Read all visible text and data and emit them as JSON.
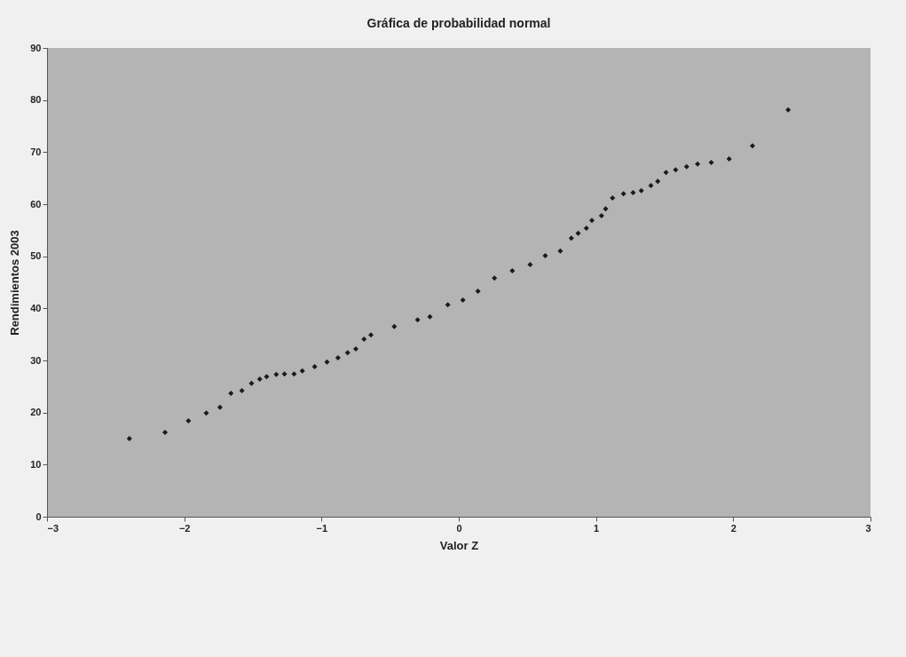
{
  "chart_data": {
    "type": "scatter",
    "title": "Gráfica de probabilidad normal",
    "xlabel": "Valor Z",
    "ylabel": "Rendimientos 2003",
    "marker": "diamond",
    "grid": false,
    "xlim": [
      -3,
      3
    ],
    "xticks": [
      -3,
      -2,
      -1,
      0,
      1,
      2,
      3
    ],
    "ylim": [
      0,
      90
    ],
    "yticks": [
      0,
      10,
      20,
      30,
      40,
      50,
      60,
      70,
      80,
      90
    ],
    "series": [
      {
        "color": "#1a1a1a",
        "x": [
          -2.4,
          -2.14,
          -1.97,
          -1.84,
          -1.74,
          -1.66,
          -1.58,
          -1.51,
          -1.45,
          -1.4,
          -1.33,
          -1.27,
          -1.2,
          -1.14,
          -1.05,
          -0.96,
          -0.88,
          -0.81,
          -0.75,
          -0.69,
          -0.64,
          -0.47,
          -0.3,
          -0.21,
          -0.08,
          0.03,
          0.14,
          0.26,
          0.39,
          0.52,
          0.63,
          0.74,
          0.82,
          0.87,
          0.93,
          0.97,
          1.04,
          1.07,
          1.12,
          1.2,
          1.27,
          1.33,
          1.4,
          1.45,
          1.51,
          1.58,
          1.66,
          1.74,
          1.84,
          1.97,
          2.14,
          2.4
        ],
        "values": [
          15.0,
          16.2,
          18.4,
          19.9,
          21.0,
          23.7,
          24.2,
          25.6,
          26.4,
          26.9,
          27.3,
          27.4,
          27.4,
          28.0,
          28.8,
          29.7,
          30.5,
          31.5,
          32.2,
          34.1,
          34.9,
          36.5,
          37.8,
          38.4,
          40.7,
          41.6,
          43.3,
          45.8,
          47.2,
          48.4,
          50.1,
          51.0,
          53.5,
          54.4,
          55.4,
          56.9,
          57.8,
          59.1,
          61.2,
          62.0,
          62.2,
          62.6,
          63.6,
          64.4,
          66.1,
          66.6,
          67.2,
          67.7,
          68.0,
          68.7,
          71.2,
          78.1
        ]
      }
    ]
  }
}
